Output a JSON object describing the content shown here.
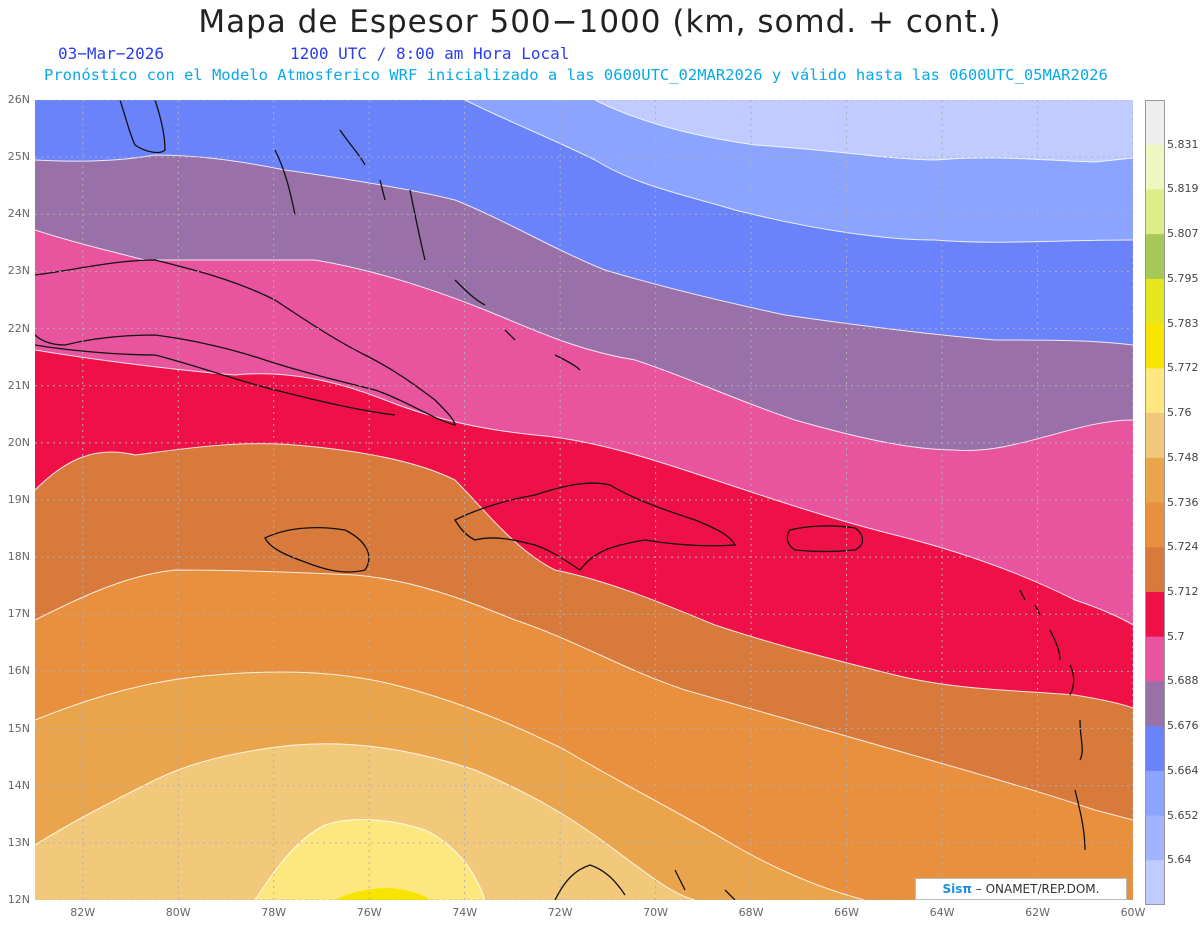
{
  "header": {
    "title": "Mapa de Espesor 500−1000 (km, somd. + cont.)",
    "date": "03−Mar−2026",
    "time": "1200 UTC / 8:00 am Hora Local",
    "info": "Pronóstico con el Modelo Atmosferico WRF inicializado a las 0600UTC_02MAR2026 y válido hasta las  0600UTC_05MAR2026"
  },
  "map": {
    "lat_labels": [
      "26N",
      "25N",
      "24N",
      "23N",
      "22N",
      "21N",
      "20N",
      "19N",
      "18N",
      "17N",
      "16N",
      "15N",
      "14N",
      "13N",
      "12N"
    ],
    "lon_labels": [
      "82W",
      "80W",
      "78W",
      "76W",
      "74W",
      "72W",
      "70W",
      "68W",
      "66W",
      "64W",
      "62W",
      "60W"
    ],
    "lat_range": [
      12,
      26
    ],
    "lon_range": [
      -83,
      -60
    ],
    "credit_logo": "Sisπ",
    "credit_text": "– ONAMET/REP.DOM."
  },
  "legend": {
    "values": [
      "5.64",
      "5.652",
      "5.664",
      "5.676",
      "5.688",
      "5.7",
      "5.712",
      "5.724",
      "5.736",
      "5.748",
      "5.76",
      "5.772",
      "5.783",
      "5.795",
      "5.807",
      "5.819",
      "5.831"
    ],
    "colors": [
      "#c0ccff",
      "#a0b4ff",
      "#8aa4ff",
      "#6a82fa",
      "#9a70a8",
      "#e8559e",
      "#f01048",
      "#d87a3c",
      "#e8903e",
      "#eaa54c",
      "#f2c97a",
      "#fde880",
      "#f7e400",
      "#e6e61e",
      "#a6c856",
      "#dcee8a",
      "#f0f6c0",
      "#eeeeee"
    ]
  }
}
